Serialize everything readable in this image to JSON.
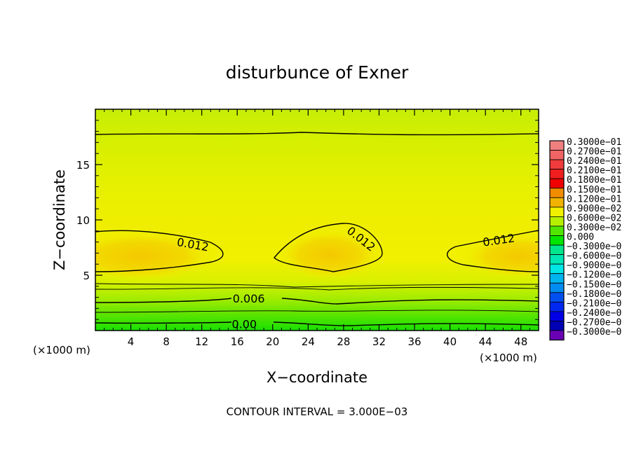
{
  "chart_data": {
    "type": "heatmap",
    "title": "disturbunce of Exner",
    "xlabel": "X−coordinate",
    "ylabel": "Z−coordinate",
    "x_unit": "(×1000 m)",
    "y_unit": "(×1000 m)",
    "xlim": [
      0,
      50
    ],
    "ylim": [
      0,
      20
    ],
    "x_ticks": [
      4,
      8,
      12,
      16,
      20,
      24,
      28,
      32,
      36,
      40,
      44,
      48
    ],
    "y_ticks": [
      5,
      10,
      15
    ],
    "note": "CONTOUR INTERVAL = 3.000E−03",
    "contour_labels": [
      {
        "text": "0.012",
        "x": 11,
        "z": 7.8,
        "angle": 10
      },
      {
        "text": "0.012",
        "x": 30,
        "z": 8.3,
        "angle": 38
      },
      {
        "text": "0.012",
        "x": 45.5,
        "z": 8.2,
        "angle": -8
      },
      {
        "text": "0.006",
        "x": 17.3,
        "z": 2.9,
        "angle": 0
      },
      {
        "text": "0.00",
        "x": 16.8,
        "z": 0.6,
        "angle": 0
      }
    ],
    "field_samples": [
      {
        "x": 5,
        "z": 6.7,
        "value": 0.0136
      },
      {
        "x": 26,
        "z": 6.7,
        "value": 0.0138
      },
      {
        "x": 48,
        "z": 6.7,
        "value": 0.0135
      },
      {
        "x": 18,
        "z": 6.7,
        "value": 0.0105
      },
      {
        "x": 38,
        "z": 6.7,
        "value": 0.0105
      },
      {
        "x": 25,
        "z": 12,
        "value": 0.0105
      },
      {
        "x": 25,
        "z": 17.8,
        "value": 0.006
      },
      {
        "x": 25,
        "z": 3.5,
        "value": 0.009
      },
      {
        "x": 25,
        "z": 2.6,
        "value": 0.006
      },
      {
        "x": 25,
        "z": 1.3,
        "value": 0.003
      },
      {
        "x": 25,
        "z": 0.5,
        "value": 0.0
      }
    ],
    "colorbar": {
      "labels": [
        "0.3000e−01",
        "0.2700e−01",
        "0.2400e−01",
        "0.2100e−01",
        "0.1800e−01",
        "0.1500e−01",
        "0.1200e−01",
        "0.9000e−02",
        "0.6000e−02",
        "0.3000e−02",
        "0.000",
        "−0.3000e−0",
        "−0.6000e−0",
        "−0.9000e−0",
        "−0.1200e−0",
        "−0.1500e−0",
        "−0.1800e−0",
        "−0.2100e−0",
        "−0.2400e−0",
        "−0.2700e−0",
        "−0.3000e−0"
      ],
      "colors": [
        "#f08080",
        "#f06464",
        "#f03c3c",
        "#f01e1e",
        "#f00000",
        "#f08c00",
        "#f0b400",
        "#f0f000",
        "#b4f000",
        "#50e600",
        "#00e600",
        "#00e68c",
        "#00e6b4",
        "#00e6e6",
        "#00b4f0",
        "#008cf0",
        "#0050f0",
        "#0028f0",
        "#0000e6",
        "#0000b4",
        "#6a00b4"
      ]
    }
  }
}
